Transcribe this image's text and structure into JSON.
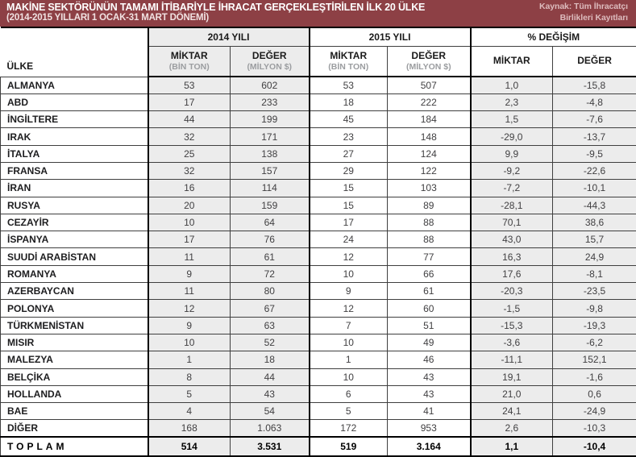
{
  "header": {
    "title": "MAKİNE SEKTÖRÜNÜN TAMAMI İTİBARİYLE İHRACAT GERÇEKLEŞTİRİLEN İLK 20 ÜLKE",
    "subtitle": "(2014-2015 YILLARI 1 OCAK-31 MART DÖNEMİ)",
    "source_line1": "Kaynak: Tüm İhracatçı",
    "source_line2": "Birlikleri Kayıtları"
  },
  "colors": {
    "header_bg": "#8d4045",
    "shaded_cell": "#ececec",
    "thin_border": "#3f3f3f",
    "thick_border": "#000000",
    "number_text": "#414042",
    "source_text": "#ddbcbe"
  },
  "table": {
    "country_header": "ÜLKE",
    "group_headers": [
      "2014 YILI",
      "2015 YILI",
      "% DEĞİŞİM"
    ],
    "sub_headers": [
      {
        "label": "MİKTAR",
        "unit": "(BİN TON)"
      },
      {
        "label": "DEĞER",
        "unit": "(MİLYON $)"
      },
      {
        "label": "MİKTAR",
        "unit": "(BİN TON)"
      },
      {
        "label": "DEĞER",
        "unit": "(MİLYON $)"
      },
      {
        "label": "MİKTAR",
        "unit": ""
      },
      {
        "label": "DEĞER",
        "unit": ""
      }
    ],
    "rows": [
      {
        "country": "ALMANYA",
        "values": [
          "53",
          "602",
          "53",
          "507",
          "1,0",
          "-15,8"
        ]
      },
      {
        "country": "ABD",
        "values": [
          "17",
          "233",
          "18",
          "222",
          "2,3",
          "-4,8"
        ]
      },
      {
        "country": "İNGİLTERE",
        "values": [
          "44",
          "199",
          "45",
          "184",
          "1,5",
          "-7,6"
        ]
      },
      {
        "country": "IRAK",
        "values": [
          "32",
          "171",
          "23",
          "148",
          "-29,0",
          "-13,7"
        ]
      },
      {
        "country": "İTALYA",
        "values": [
          "25",
          "138",
          "27",
          "124",
          "9,9",
          "-9,5"
        ]
      },
      {
        "country": "FRANSA",
        "values": [
          "32",
          "157",
          "29",
          "122",
          "-9,2",
          "-22,6"
        ]
      },
      {
        "country": "İRAN",
        "values": [
          "16",
          "114",
          "15",
          "103",
          "-7,2",
          "-10,1"
        ]
      },
      {
        "country": "RUSYA",
        "values": [
          "20",
          "159",
          "15",
          "89",
          "-28,1",
          "-44,3"
        ]
      },
      {
        "country": "CEZAYİR",
        "values": [
          "10",
          "64",
          "17",
          "88",
          "70,1",
          "38,6"
        ]
      },
      {
        "country": "İSPANYA",
        "values": [
          "17",
          "76",
          "24",
          "88",
          "43,0",
          "15,7"
        ]
      },
      {
        "country": "SUUDİ ARABİSTAN",
        "values": [
          "11",
          "61",
          "12",
          "77",
          "16,3",
          "24,9"
        ]
      },
      {
        "country": "ROMANYA",
        "values": [
          "9",
          "72",
          "10",
          "66",
          "17,6",
          "-8,1"
        ]
      },
      {
        "country": "AZERBAYCAN",
        "values": [
          "11",
          "80",
          "9",
          "61",
          "-20,3",
          "-23,5"
        ]
      },
      {
        "country": "POLONYA",
        "values": [
          "12",
          "67",
          "12",
          "60",
          "-1,5",
          "-9,8"
        ]
      },
      {
        "country": "TÜRKMENİSTAN",
        "values": [
          "9",
          "63",
          "7",
          "51",
          "-15,3",
          "-19,3"
        ]
      },
      {
        "country": "MISIR",
        "values": [
          "10",
          "52",
          "10",
          "49",
          "-3,6",
          "-6,2"
        ]
      },
      {
        "country": "MALEZYA",
        "values": [
          "1",
          "18",
          "1",
          "46",
          "-11,1",
          "152,1"
        ]
      },
      {
        "country": "BELÇİKA",
        "values": [
          "8",
          "44",
          "10",
          "43",
          "19,1",
          "-1,6"
        ]
      },
      {
        "country": "HOLLANDA",
        "values": [
          "5",
          "43",
          "6",
          "43",
          "21,0",
          "0,6"
        ]
      },
      {
        "country": "BAE",
        "values": [
          "4",
          "54",
          "5",
          "41",
          "24,1",
          "-24,9"
        ]
      },
      {
        "country": "DİĞER",
        "values": [
          "168",
          "1.063",
          "172",
          "953",
          "2,6",
          "-10,3"
        ]
      }
    ],
    "total": {
      "label": "TOPLAM",
      "values": [
        "514",
        "3.531",
        "519",
        "3.164",
        "1,1",
        "-10,4"
      ]
    }
  }
}
